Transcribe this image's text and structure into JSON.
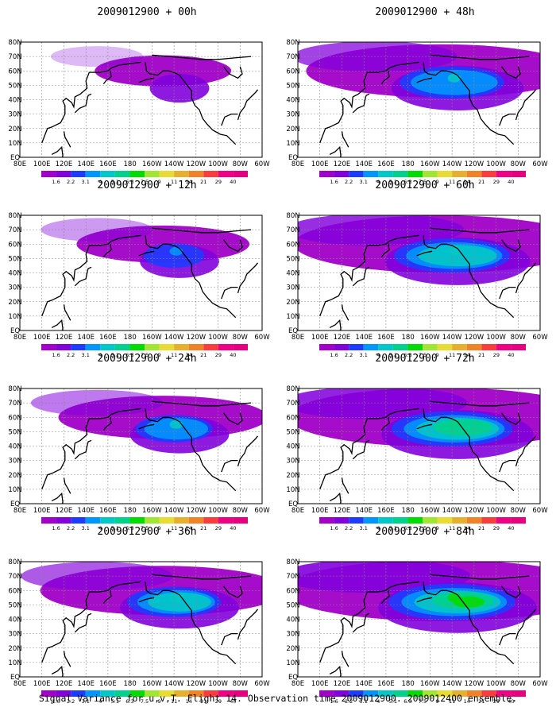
{
  "panels": [
    {
      "title": "2009012900 + 00h",
      "lead": "00h",
      "intensity": 0.15,
      "spread": 0.2
    },
    {
      "title": "2009012900 + 48h",
      "lead": "48h",
      "intensity": 0.45,
      "spread": 0.75
    },
    {
      "title": "2009012900 + 12h",
      "lead": "12h",
      "intensity": 0.35,
      "spread": 0.35
    },
    {
      "title": "2009012900 + 60h",
      "lead": "60h",
      "intensity": 0.55,
      "spread": 0.85
    },
    {
      "title": "2009012900 + 24h",
      "lead": "24h",
      "intensity": 0.45,
      "spread": 0.5
    },
    {
      "title": "2009012900 + 72h",
      "lead": "72h",
      "intensity": 0.65,
      "spread": 0.9
    },
    {
      "title": "2009012900 + 36h",
      "lead": "36h",
      "intensity": 0.55,
      "spread": 0.65
    },
    {
      "title": "2009012900 + 84h",
      "lead": "84h",
      "intensity": 0.7,
      "spread": 0.95
    }
  ],
  "lon_labels": [
    "80E",
    "100E",
    "120E",
    "140E",
    "160E",
    "180",
    "160W",
    "140W",
    "120W",
    "100W",
    "80W",
    "60W"
  ],
  "lat_labels": [
    "EQ",
    "10N",
    "20N",
    "30N",
    "40N",
    "50N",
    "60N",
    "70N",
    "80N"
  ],
  "colorbar": {
    "labels": [
      "1.6",
      "2.2",
      "3.1",
      "4",
      "5.1",
      "6.3",
      "7.5",
      "9",
      "11",
      "14",
      "21",
      "29",
      "40"
    ],
    "colors": [
      "#a000c8",
      "#8200dc",
      "#1e3cff",
      "#0096ff",
      "#00c8c8",
      "#00d28c",
      "#00dc00",
      "#a0e632",
      "#e6dc32",
      "#e6af2d",
      "#f08228",
      "#fa3c3c",
      "#f00082",
      "#e6007d"
    ]
  },
  "footer": "Signal Variance for u,v,T. Flight 14. Observation time 2009012900. 2009012400 ensemble."
}
